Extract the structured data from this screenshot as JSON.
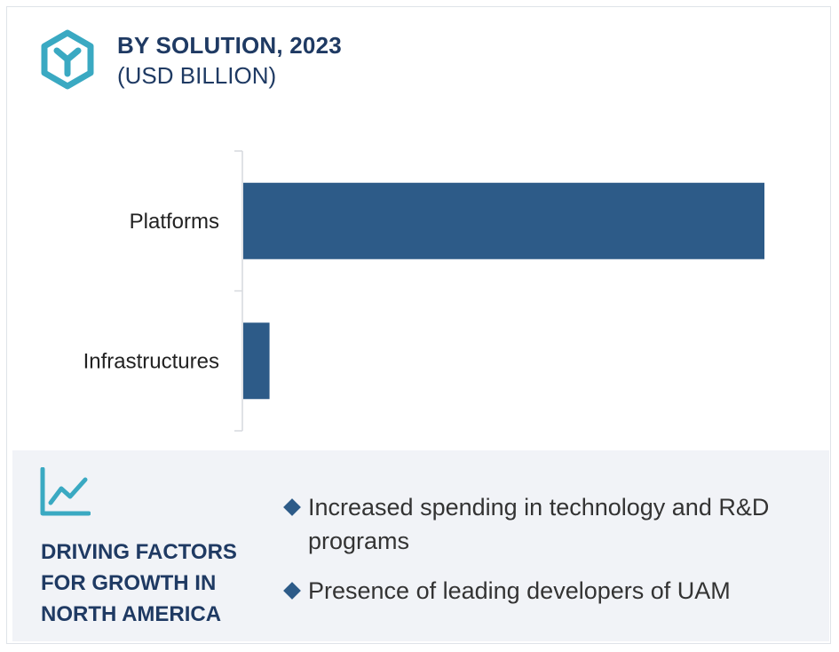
{
  "header": {
    "title": "BY SOLUTION, 2023",
    "subtitle": "(USD BILLION)",
    "icon": "hexagon-y-icon"
  },
  "colors": {
    "bar": "#2d5b88",
    "accent": "#3aa9c2",
    "title": "#1f3a63",
    "panel": "#f1f3f7"
  },
  "chart_data": {
    "type": "bar",
    "orientation": "horizontal",
    "categories": [
      "Platforms",
      "Infrastructures"
    ],
    "values": [
      100,
      5.2
    ],
    "title": "BY SOLUTION, 2023",
    "subtitle": "(USD BILLION)",
    "xlabel": "",
    "ylabel": "",
    "xlim": [
      0,
      100
    ],
    "grid": false,
    "legend": "none"
  },
  "drivers": {
    "icon": "trend-line-icon",
    "title": "DRIVING FACTORS FOR GROWTH IN NORTH AMERICA",
    "factors": [
      "Increased spending in technology and R&D programs",
      "Presence of leading developers of UAM"
    ]
  }
}
